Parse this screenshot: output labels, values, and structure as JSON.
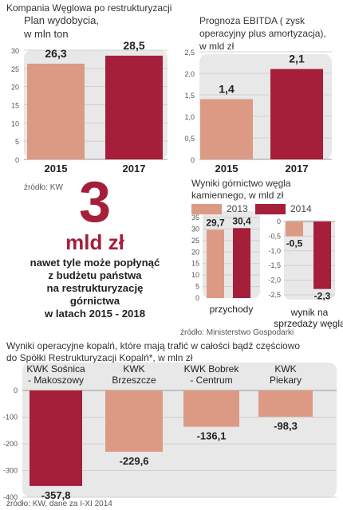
{
  "header": {
    "title": "Kompania Węglowa po restrukturyzacji"
  },
  "colors": {
    "salmon": "#dc9a85",
    "crimson": "#a51e3a",
    "panel": "#e8e8e8",
    "grid": "#cfcfcf"
  },
  "panel1": {
    "title_line1": "Plan wydobycia,",
    "title_line2": "w mln ton"
  },
  "panel2": {
    "title_line1": "Prognoza EBITDA ( zysk",
    "title_line2": "operacyjny plus amortyzacja),",
    "title_line3": "w mld zł"
  },
  "source1": "źródło: KW",
  "headline": {
    "number": "3",
    "unit": "mld zł",
    "lines": [
      "nawet tyle może popłynąć",
      "z budżetu państwa",
      "na restrukturyzację",
      "górnictwa",
      "w latach 2015 - 2018"
    ]
  },
  "panel3": {
    "title_line1": "Wyniki górnictwo węgla",
    "title_line2": "kamiennego, w mld zł",
    "legend": [
      {
        "label": "2013",
        "color": "#dc9a85"
      },
      {
        "label": "2014",
        "color": "#a51e3a"
      }
    ],
    "group1_label": "przychody",
    "group2_label_line1": "wynik na",
    "group2_label_line2": "sprzedaży węgla"
  },
  "source2": "źródło: Ministerstwo Gospodarki",
  "panel4": {
    "title_line1": "Wyniki operacyjne kopalń, które mają trafić w całości bądź częściowo",
    "title_line2": "do Spółki Restrukturyzacji Kopalń*, w mln zł"
  },
  "source3": "źródło: KW, dane za I-XI 2014",
  "chart_data": [
    {
      "type": "bar",
      "title": "Plan wydobycia, w mln ton",
      "categories": [
        "2015",
        "2017"
      ],
      "values": [
        26.3,
        28.5
      ],
      "value_labels": [
        "26,3",
        "28,5"
      ],
      "y_ticks": [
        "0",
        "5",
        "10",
        "15",
        "20",
        "25",
        "30"
      ],
      "ylim": [
        0,
        30
      ],
      "colors": [
        "#dc9a85",
        "#a51e3a"
      ]
    },
    {
      "type": "bar",
      "title": "Prognoza EBITDA ( zysk operacyjny plus amortyzacja), w mld zł",
      "categories": [
        "2015",
        "2017"
      ],
      "values": [
        1.4,
        2.1
      ],
      "value_labels": [
        "1,4",
        "2,1"
      ],
      "y_ticks": [
        "0",
        "0,5",
        "1,0",
        "1,5",
        "2,0",
        "2,5"
      ],
      "ylim": [
        0,
        2.5
      ],
      "colors": [
        "#dc9a85",
        "#a51e3a"
      ]
    },
    {
      "type": "bar",
      "title": "Wyniki górnictwo węgla kamiennego, w mld zł",
      "categories": [
        "przychody",
        "wynik na sprzedaży węgla"
      ],
      "series": [
        {
          "name": "2013",
          "values": [
            29.7,
            -0.5
          ],
          "value_labels": [
            "29,7",
            "-0,5"
          ]
        },
        {
          "name": "2014",
          "values": [
            30.4,
            -2.3
          ],
          "value_labels": [
            "30,4",
            "-2,3"
          ]
        }
      ],
      "panel1_ticks": [
        "0",
        "5",
        "10",
        "15",
        "20",
        "25",
        "30",
        "35"
      ],
      "panel1_ylim": [
        0,
        35
      ],
      "panel2_ticks": [
        "0",
        "-0,5",
        "-1,0",
        "-1,5",
        "-2,0",
        "-2,5"
      ],
      "panel2_ylim": [
        -2.5,
        0
      ]
    },
    {
      "type": "bar",
      "title": "Wyniki operacyjne kopalń, które mają trafić w całości bądź częściowo do Spółki Restrukturyzacji Kopalń*, w mln zł",
      "categories": [
        [
          "KWK Sośnica",
          "- Makoszowy"
        ],
        [
          "KWK",
          "Brzeszcze"
        ],
        [
          "KWK Bobrek",
          "- Centrum"
        ],
        [
          "KWK",
          "Piekary"
        ]
      ],
      "values": [
        -357.8,
        -229.6,
        -136.1,
        -98.3
      ],
      "value_labels": [
        "-357,8",
        "-229,6",
        "-136,1",
        "-98,3"
      ],
      "y_ticks": [
        "0",
        "-100",
        "-200",
        "-300",
        "-400"
      ],
      "ylim": [
        -400,
        0
      ],
      "colors": [
        "#a51e3a",
        "#dc9a85",
        "#dc9a85",
        "#dc9a85"
      ]
    }
  ]
}
